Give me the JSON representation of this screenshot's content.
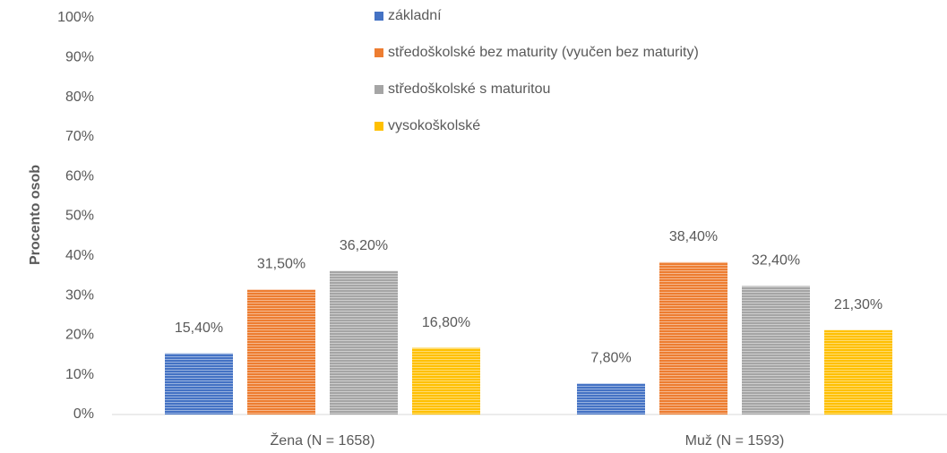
{
  "chart_data": {
    "type": "bar",
    "y_label": "Procento osob",
    "categories": [
      "Žena (N = 1658)",
      "Muž (N = 1593)"
    ],
    "series": [
      {
        "name": "základní",
        "color": "#4472c4",
        "values": [
          15.4,
          7.8
        ],
        "value_labels": [
          "15,40%",
          "7,80%"
        ]
      },
      {
        "name": "středoškolské bez maturity (vyučen bez maturity)",
        "color": "#ed7d31",
        "values": [
          31.5,
          38.4
        ],
        "value_labels": [
          "31,50%",
          "38,40%"
        ]
      },
      {
        "name": "středoškolské s maturitou",
        "color": "#a5a5a5",
        "values": [
          36.2,
          32.4
        ],
        "value_labels": [
          "36,20%",
          "32,40%"
        ]
      },
      {
        "name": "vysokoškolské",
        "color": "#ffc000",
        "values": [
          16.8,
          21.3
        ],
        "value_labels": [
          "16,80%",
          "21,30%"
        ]
      }
    ],
    "ylim": [
      0,
      100
    ],
    "yticks": [
      {
        "value": 0,
        "label": "0%"
      },
      {
        "value": 10,
        "label": "10%"
      },
      {
        "value": 20,
        "label": "20%"
      },
      {
        "value": 30,
        "label": "30%"
      },
      {
        "value": 40,
        "label": "40%"
      },
      {
        "value": 50,
        "label": "50%"
      },
      {
        "value": 60,
        "label": "60%"
      },
      {
        "value": 70,
        "label": "70%"
      },
      {
        "value": 80,
        "label": "80%"
      },
      {
        "value": 90,
        "label": "90%"
      },
      {
        "value": 100,
        "label": "100%"
      }
    ],
    "grid": false,
    "legend": "top"
  }
}
